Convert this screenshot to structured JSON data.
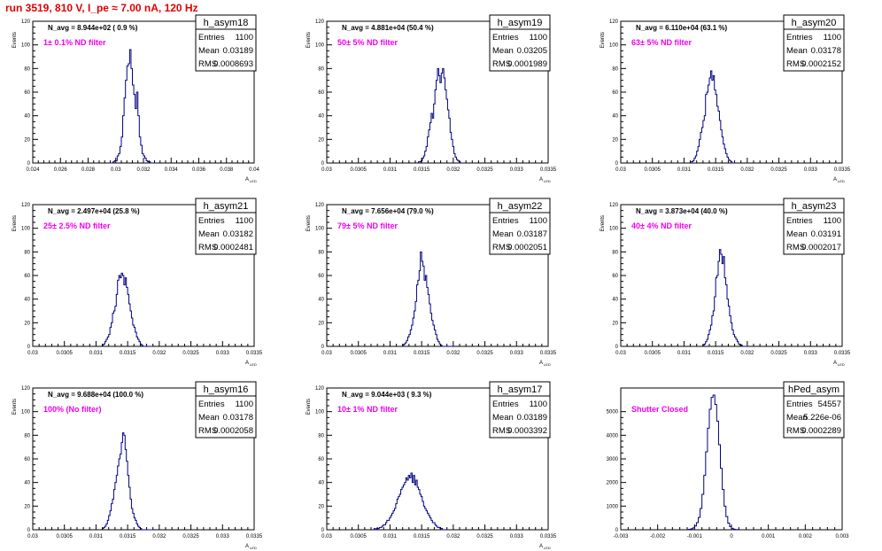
{
  "page_title": "run 3519,   810 V, I_pe ≈ 7.00 nA, 120 Hz",
  "colors": {
    "title": "#e00000",
    "annotation": "#ee00ee",
    "hist_line": "#000080",
    "axis": "#000000"
  },
  "chart_data": [
    {
      "type": "histogram",
      "name": "h_asym18",
      "stats": {
        "entries": "1100",
        "mean": "0.03189",
        "rms": "0.0008693"
      },
      "navg": "N_avg = 8.944e+02 ( 0.9 %)",
      "filter_label": "1± 0.1% ND filter",
      "ylabel": "Events",
      "xlabel": "A_LED",
      "xlim": [
        0.024,
        0.04
      ],
      "ylim": [
        0,
        120
      ],
      "xticks": [
        "0.024",
        "0.026",
        "0.028",
        "0.03",
        "0.032",
        "0.034",
        "0.036",
        "0.038",
        "0.04"
      ],
      "xtick_values": [
        0.024,
        0.026,
        0.028,
        0.03,
        0.032,
        0.034,
        0.036,
        0.038,
        0.04
      ],
      "yticks": [
        0,
        20,
        40,
        60,
        80,
        100,
        120
      ],
      "bin_start": 0.0295,
      "bin_width": 0.0001,
      "counts": [
        0,
        0,
        0,
        1,
        2,
        2,
        6,
        8,
        14,
        22,
        40,
        55,
        70,
        82,
        84,
        96,
        80,
        66,
        58,
        46,
        60,
        40,
        22,
        15,
        8,
        6,
        4,
        2,
        1,
        1,
        0,
        0,
        0,
        0,
        0
      ]
    },
    {
      "type": "histogram",
      "name": "h_asym19",
      "stats": {
        "entries": "1100",
        "mean": "0.03205",
        "rms": "0.0001989"
      },
      "navg": "N_avg = 4.881e+04 (50.4 %)",
      "filter_label": "50± 5% ND filter",
      "ylabel": "Events",
      "xlabel": "A_LED",
      "xlim": [
        0.03,
        0.0335
      ],
      "ylim": [
        0,
        120
      ],
      "xticks": [
        "0.03",
        "0.0305",
        "0.031",
        "0.0315",
        "0.032",
        "0.0325",
        "0.033",
        "0.0335"
      ],
      "xtick_values": [
        0.03,
        0.0305,
        0.031,
        0.0315,
        0.032,
        0.0325,
        0.033,
        0.0335
      ],
      "yticks": [
        0,
        20,
        40,
        60,
        80,
        100,
        120
      ],
      "bin_start": 0.03145,
      "bin_width": 2e-05,
      "counts": [
        1,
        1,
        2,
        4,
        6,
        10,
        14,
        22,
        28,
        34,
        42,
        38,
        50,
        62,
        70,
        80,
        74,
        68,
        76,
        80,
        72,
        62,
        54,
        45,
        38,
        26,
        20,
        14,
        8,
        5,
        3,
        2,
        1,
        0,
        0,
        0,
        0
      ]
    },
    {
      "type": "histogram",
      "name": "h_asym20",
      "stats": {
        "entries": "1100",
        "mean": "0.03178",
        "rms": "0.0002152"
      },
      "navg": "N_avg = 6.110e+04 (63.1 %)",
      "filter_label": "63± 5% ND filter",
      "ylabel": "Events",
      "xlabel": "A_LED",
      "xlim": [
        0.03,
        0.0335
      ],
      "ylim": [
        0,
        120
      ],
      "xticks": [
        "0.03",
        "0.0305",
        "0.031",
        "0.0315",
        "0.032",
        "0.0325",
        "0.033",
        "0.0335"
      ],
      "xtick_values": [
        0.03,
        0.0305,
        0.031,
        0.0315,
        0.032,
        0.0325,
        0.033,
        0.0335
      ],
      "yticks": [
        0,
        20,
        40,
        60,
        80,
        100,
        120
      ],
      "bin_start": 0.0311,
      "bin_width": 2e-05,
      "counts": [
        1,
        1,
        2,
        4,
        6,
        10,
        14,
        20,
        26,
        30,
        36,
        40,
        58,
        60,
        66,
        72,
        78,
        70,
        74,
        62,
        58,
        48,
        44,
        36,
        28,
        22,
        16,
        12,
        8,
        5,
        3,
        2,
        1,
        0,
        0,
        0,
        0
      ]
    },
    {
      "type": "histogram",
      "name": "h_asym21",
      "stats": {
        "entries": "1100",
        "mean": "0.03182",
        "rms": "0.0002481"
      },
      "navg": "N_avg = 2.497e+04 (25.8 %)",
      "filter_label": "25± 2.5% ND filter",
      "ylabel": "Events",
      "xlabel": "A_LED",
      "xlim": [
        0.03,
        0.0335
      ],
      "ylim": [
        0,
        120
      ],
      "xticks": [
        "0.03",
        "0.0305",
        "0.031",
        "0.0315",
        "0.032",
        "0.0325",
        "0.033",
        "0.0335"
      ],
      "xtick_values": [
        0.03,
        0.0305,
        0.031,
        0.0315,
        0.032,
        0.0325,
        0.033,
        0.0335
      ],
      "yticks": [
        0,
        20,
        40,
        60,
        80,
        100,
        120
      ],
      "bin_start": 0.0311,
      "bin_width": 2e-05,
      "counts": [
        1,
        2,
        4,
        6,
        8,
        10,
        16,
        20,
        28,
        30,
        34,
        44,
        56,
        60,
        58,
        62,
        60,
        52,
        58,
        50,
        44,
        36,
        30,
        24,
        18,
        16,
        12,
        8,
        6,
        4,
        2,
        1,
        0,
        0,
        0,
        0,
        0,
        0,
        0,
        0
      ]
    },
    {
      "type": "histogram",
      "name": "h_asym22",
      "stats": {
        "entries": "1100",
        "mean": "0.03187",
        "rms": "0.0002051"
      },
      "navg": "N_avg = 7.656e+04 (79.0 %)",
      "filter_label": "79± 5% ND filter",
      "ylabel": "Events",
      "xlabel": "A_LED",
      "xlim": [
        0.03,
        0.0335
      ],
      "ylim": [
        0,
        120
      ],
      "xticks": [
        "0.03",
        "0.0305",
        "0.031",
        "0.0315",
        "0.032",
        "0.0325",
        "0.033",
        "0.0335"
      ],
      "xtick_values": [
        0.03,
        0.0305,
        0.031,
        0.0315,
        0.032,
        0.0325,
        0.033,
        0.0335
      ],
      "yticks": [
        0,
        20,
        40,
        60,
        80,
        100,
        120
      ],
      "bin_start": 0.0312,
      "bin_width": 2e-05,
      "counts": [
        1,
        2,
        3,
        5,
        8,
        10,
        14,
        18,
        24,
        30,
        38,
        52,
        56,
        64,
        80,
        72,
        68,
        56,
        60,
        50,
        44,
        36,
        28,
        22,
        18,
        14,
        10,
        6,
        4,
        2,
        1,
        0,
        0,
        0,
        0,
        0,
        0,
        0,
        0,
        0
      ]
    },
    {
      "type": "histogram",
      "name": "h_asym23",
      "stats": {
        "entries": "1100",
        "mean": "0.03191",
        "rms": "0.0002017"
      },
      "navg": "N_avg = 3.873e+04 (40.0 %)",
      "filter_label": "40± 4% ND filter",
      "ylabel": "Events",
      "xlabel": "A_LED",
      "xlim": [
        0.03,
        0.0335
      ],
      "ylim": [
        0,
        120
      ],
      "xticks": [
        "0.03",
        "0.0305",
        "0.031",
        "0.0315",
        "0.032",
        "0.0325",
        "0.033",
        "0.0335"
      ],
      "xtick_values": [
        0.03,
        0.0305,
        0.031,
        0.0315,
        0.032,
        0.0325,
        0.033,
        0.0335
      ],
      "yticks": [
        0,
        20,
        40,
        60,
        80,
        100,
        120
      ],
      "bin_start": 0.0313,
      "bin_width": 2e-05,
      "counts": [
        1,
        2,
        4,
        6,
        10,
        14,
        18,
        26,
        30,
        42,
        58,
        60,
        72,
        82,
        78,
        70,
        76,
        58,
        52,
        40,
        34,
        26,
        20,
        14,
        10,
        8,
        6,
        4,
        2,
        1,
        1,
        0,
        0,
        0,
        0,
        0
      ]
    },
    {
      "type": "histogram",
      "name": "h_asym16",
      "stats": {
        "entries": "1100",
        "mean": "0.03178",
        "rms": "0.0002058"
      },
      "navg": "N_avg = 9.688e+04 (100.0 %)",
      "filter_label": "100% (No filter)",
      "ylabel": "Events",
      "xlabel": "A_LED",
      "xlim": [
        0.03,
        0.0335
      ],
      "ylim": [
        0,
        120
      ],
      "xticks": [
        "0.03",
        "0.0305",
        "0.031",
        "0.0315",
        "0.032",
        "0.0325",
        "0.033",
        "0.0335"
      ],
      "xtick_values": [
        0.03,
        0.0305,
        0.031,
        0.0315,
        0.032,
        0.0325,
        0.033,
        0.0335
      ],
      "yticks": [
        0,
        20,
        40,
        60,
        80,
        100,
        120
      ],
      "bin_start": 0.0311,
      "bin_width": 2e-05,
      "counts": [
        1,
        2,
        3,
        5,
        8,
        12,
        16,
        22,
        26,
        34,
        40,
        46,
        54,
        60,
        64,
        74,
        82,
        80,
        68,
        58,
        46,
        36,
        26,
        18,
        14,
        10,
        8,
        5,
        3,
        2,
        1,
        0,
        0,
        0,
        0,
        0,
        0,
        0,
        0,
        0
      ]
    },
    {
      "type": "histogram",
      "name": "h_asym17",
      "stats": {
        "entries": "1100",
        "mean": "0.03189",
        "rms": "0.0003392"
      },
      "navg": "N_avg = 9.044e+03 ( 9.3 %)",
      "filter_label": "10± 1% ND filter",
      "ylabel": "Events",
      "xlabel": "A_LED",
      "xlim": [
        0.03,
        0.0335
      ],
      "ylim": [
        0,
        120
      ],
      "xticks": [
        "0.03",
        "0.0305",
        "0.031",
        "0.0315",
        "0.032",
        "0.0325",
        "0.033",
        "0.0335"
      ],
      "xtick_values": [
        0.03,
        0.0305,
        0.031,
        0.0315,
        0.032,
        0.0325,
        0.033,
        0.0335
      ],
      "yticks": [
        0,
        20,
        40,
        60,
        80,
        100,
        120
      ],
      "bin_start": 0.03075,
      "bin_width": 2e-05,
      "counts": [
        1,
        0,
        1,
        1,
        2,
        2,
        3,
        4,
        4,
        6,
        8,
        8,
        10,
        12,
        14,
        16,
        18,
        22,
        26,
        28,
        30,
        34,
        36,
        38,
        40,
        44,
        42,
        46,
        44,
        48,
        40,
        46,
        38,
        42,
        36,
        34,
        30,
        28,
        24,
        20,
        18,
        16,
        14,
        12,
        10,
        8,
        6,
        6,
        4,
        3,
        2,
        2,
        1,
        1,
        0,
        0,
        0
      ]
    },
    {
      "type": "histogram",
      "name": "hPed_asym",
      "stats": {
        "entries": "54557",
        "mean": "5.226e-06",
        "rms": "0.0002289"
      },
      "navg": "",
      "filter_label": "Shutter Closed",
      "ylabel": "",
      "xlabel": "",
      "xlim": [
        -0.003,
        0.003
      ],
      "ylim": [
        0,
        6000
      ],
      "xticks": [
        "-0.003",
        "-0.002",
        "-0.001",
        "0",
        "0.001",
        "0.002",
        "0.003"
      ],
      "xtick_values": [
        -0.003,
        -0.002,
        -0.001,
        0,
        0.001,
        0.002,
        0.003
      ],
      "yticks": [
        0,
        1000,
        2000,
        3000,
        4000,
        5000
      ],
      "bin_start": -0.0012,
      "bin_width": 5e-05,
      "counts": [
        10,
        20,
        40,
        80,
        160,
        300,
        520,
        900,
        1500,
        2300,
        3300,
        4300,
        5100,
        5600,
        5700,
        5300,
        4600,
        3600,
        2600,
        1700,
        1000,
        560,
        280,
        130,
        60,
        25,
        10,
        5
      ]
    }
  ]
}
